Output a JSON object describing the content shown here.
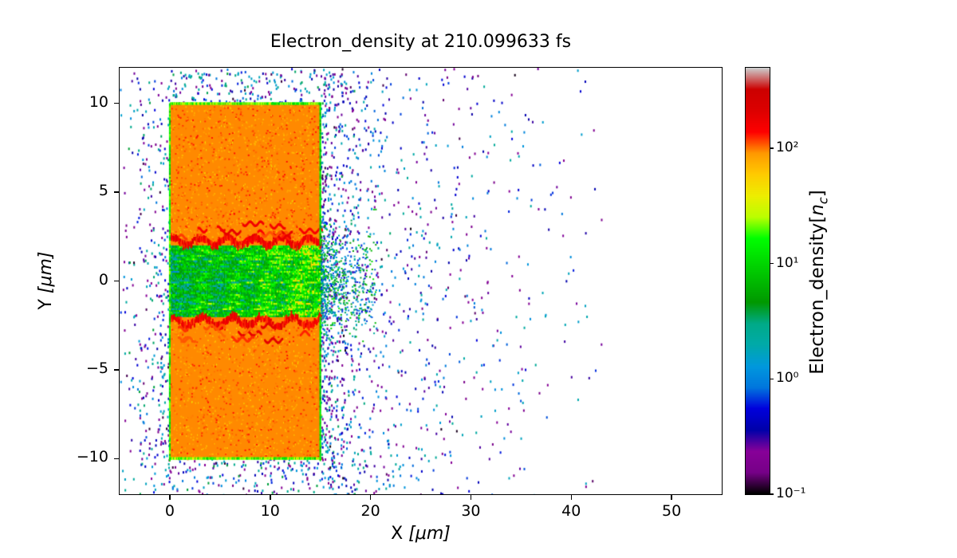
{
  "figure": {
    "title": "Electron_density at 210.099633 fs",
    "x_axis": {
      "label": "X",
      "unit": "[μm]",
      "ticks": [
        {
          "value": 0,
          "label": "0"
        },
        {
          "value": 10,
          "label": "10"
        },
        {
          "value": 20,
          "label": "20"
        },
        {
          "value": 30,
          "label": "30"
        },
        {
          "value": 40,
          "label": "40"
        },
        {
          "value": 50,
          "label": "50"
        }
      ]
    },
    "y_axis": {
      "label": "Y",
      "unit": "[μm]",
      "ticks": [
        {
          "value": 10,
          "label": "10"
        },
        {
          "value": 5,
          "label": "5"
        },
        {
          "value": 0,
          "label": "0"
        },
        {
          "value": -5,
          "label": "−5"
        },
        {
          "value": -10,
          "label": "−10"
        }
      ]
    },
    "colorbar": {
      "label_prefix": "Electron_density[",
      "label_var": "n",
      "label_sub": "c",
      "label_suffix": "]",
      "ticks": [
        {
          "value": 100,
          "label": "10²"
        },
        {
          "value": 10,
          "label": "10¹"
        },
        {
          "value": 1,
          "label": "10⁰"
        },
        {
          "value": 0.1,
          "label": "10⁻¹"
        }
      ]
    }
  },
  "chart_data": {
    "type": "heatmap",
    "title": "Electron_density at 210.099633 fs",
    "time_fs": 210.099633,
    "xlabel": "X [μm]",
    "ylabel": "Y [μm]",
    "xlim": [
      -5,
      55
    ],
    "ylim": [
      -12,
      12
    ],
    "colorbar_label": "Electron_density[n_c]",
    "colormap": "nipy_spectral",
    "color_scale": "log",
    "vmin": 0.1,
    "vmax": 500,
    "features": {
      "target_slab": {
        "x_range": [
          0,
          15
        ],
        "y_ranges": [
          [
            2,
            10
          ],
          [
            -10,
            -2
          ]
        ],
        "density_nc": 95,
        "appearance": "uniform orange solid-density plasma slab"
      },
      "channel": {
        "x_range": [
          0,
          15
        ],
        "y_range": [
          -2,
          2
        ],
        "density_nc_range": [
          0.5,
          60
        ],
        "appearance": "turbulent green/yellow laser-drilled channel, yellow patches toward x=15"
      },
      "channel_rims": {
        "y_centers": [
          2.2,
          -2.4
        ],
        "density_nc_range": [
          110,
          280
        ],
        "appearance": "jagged red compressed-density rims along channel walls"
      },
      "slab_edges": {
        "density_nc_range": [
          5,
          30
        ],
        "appearance": "thin green outline on slab boundaries"
      },
      "blowoff_speckle": {
        "x_range": [
          -5,
          42
        ],
        "y_range": [
          -12,
          12
        ],
        "density_nc_range": [
          0.1,
          5
        ],
        "appearance": "sparse blue/cyan/purple speckles of expanding low-density electrons, densest within ~3 μm of slab, thinning out toward x≈42"
      }
    }
  },
  "render": {
    "seed": 7
  }
}
